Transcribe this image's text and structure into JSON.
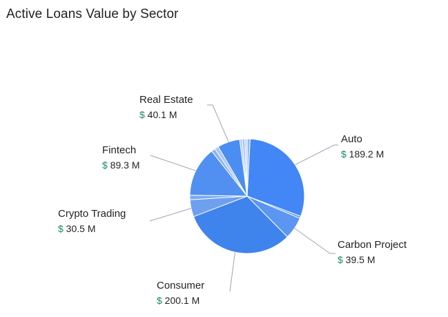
{
  "chart_data": {
    "type": "pie",
    "title": "Active Loans Value by Sector",
    "currency_symbol": "$",
    "unit": "M",
    "slices": [
      {
        "label": "Auto",
        "value": 189.2,
        "color": "#4287f5",
        "show_label": true
      },
      {
        "label": "",
        "value": 4.0,
        "color": "#6a9cf0",
        "show_label": false
      },
      {
        "label": "Carbon Project",
        "value": 39.5,
        "color": "#5b96f2",
        "show_label": true
      },
      {
        "label": "Consumer",
        "value": 200.1,
        "color": "#3f83ec",
        "show_label": true
      },
      {
        "label": "Crypto Trading",
        "value": 30.5,
        "color": "#6ea0f0",
        "show_label": true
      },
      {
        "label": "",
        "value": 8.0,
        "color": "#7aa9f2",
        "show_label": false
      },
      {
        "label": "Fintech",
        "value": 89.3,
        "color": "#5190f0",
        "show_label": true
      },
      {
        "label": "",
        "value": 7.0,
        "color": "#8db4f4",
        "show_label": false
      },
      {
        "label": "",
        "value": 7.0,
        "color": "#a9c6f6",
        "show_label": false
      },
      {
        "label": "Real Estate",
        "value": 40.1,
        "color": "#4a8ef1",
        "show_label": true
      },
      {
        "label": "",
        "value": 4.5,
        "color": "#b3cdf7",
        "show_label": false
      },
      {
        "label": "",
        "value": 4.5,
        "color": "#9fbff5",
        "show_label": false
      },
      {
        "label": "",
        "value": 4.5,
        "color": "#c0d6f8",
        "show_label": false
      },
      {
        "label": "",
        "value": 5.0,
        "color": "#8fb5f4",
        "show_label": false
      }
    ]
  }
}
